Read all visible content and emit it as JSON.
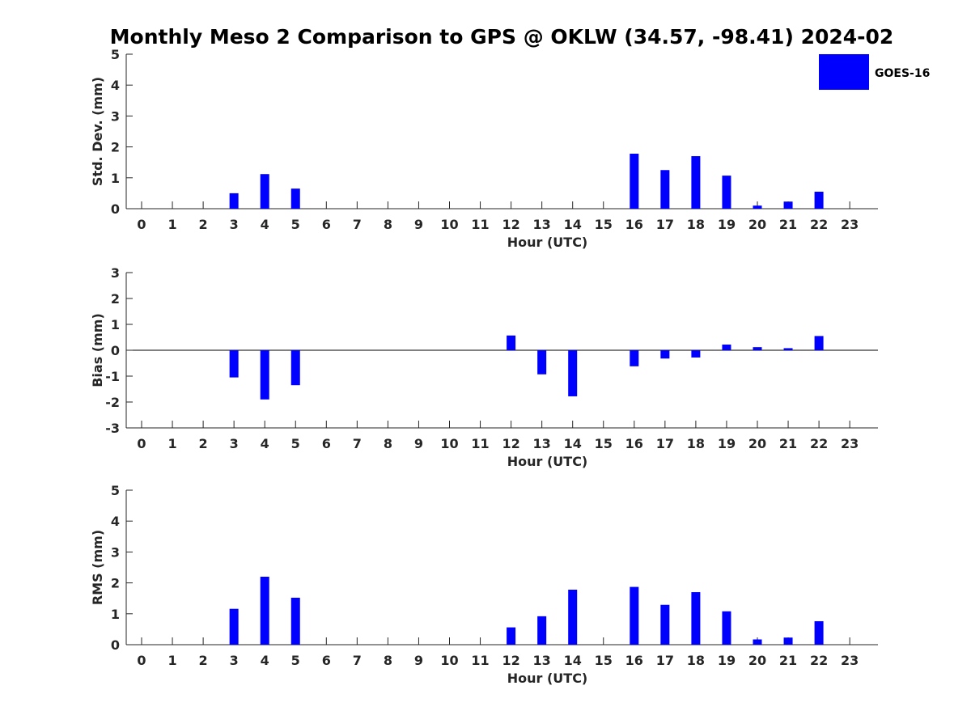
{
  "chart_data": {
    "type": "bar",
    "title": "Monthly Meso 2 Comparison to GPS @ OKLW (34.57, -98.41) 2024-02",
    "legend": {
      "label": "GOES-16",
      "color": "#0000ff",
      "placement": "top-right"
    },
    "categories": [
      "0",
      "1",
      "2",
      "3",
      "4",
      "5",
      "6",
      "7",
      "8",
      "9",
      "10",
      "11",
      "12",
      "13",
      "14",
      "15",
      "16",
      "17",
      "18",
      "19",
      "20",
      "21",
      "22",
      "23"
    ],
    "panels": [
      {
        "id": "stddev",
        "ylabel": "Std. Dev. (mm)",
        "xlabel": "Hour (UTC)",
        "ylim": [
          0,
          5
        ],
        "yticks": [
          "0",
          "1",
          "2",
          "3",
          "4",
          "5"
        ],
        "values": [
          null,
          null,
          null,
          0.5,
          1.12,
          0.65,
          null,
          null,
          null,
          null,
          null,
          null,
          null,
          null,
          null,
          null,
          1.78,
          1.25,
          1.7,
          1.07,
          0.1,
          0.23,
          0.55,
          null
        ]
      },
      {
        "id": "bias",
        "ylabel": "Bias (mm)",
        "xlabel": "Hour (UTC)",
        "ylim": [
          -3,
          3
        ],
        "yticks": [
          "-3",
          "-2",
          "-1",
          "0",
          "1",
          "2",
          "3"
        ],
        "values": [
          null,
          null,
          null,
          -1.05,
          -1.9,
          -1.35,
          null,
          null,
          null,
          null,
          null,
          null,
          0.57,
          -0.93,
          -1.78,
          null,
          -0.62,
          -0.32,
          -0.28,
          0.22,
          0.12,
          0.08,
          0.55,
          null
        ]
      },
      {
        "id": "rms",
        "ylabel": "RMS (mm)",
        "xlabel": "Hour (UTC)",
        "ylim": [
          0,
          5
        ],
        "yticks": [
          "0",
          "1",
          "2",
          "3",
          "4",
          "5"
        ],
        "values": [
          null,
          null,
          null,
          1.16,
          2.2,
          1.52,
          null,
          null,
          null,
          null,
          null,
          null,
          0.56,
          0.92,
          1.78,
          null,
          1.87,
          1.29,
          1.7,
          1.08,
          0.17,
          0.23,
          0.76,
          null
        ]
      }
    ]
  }
}
